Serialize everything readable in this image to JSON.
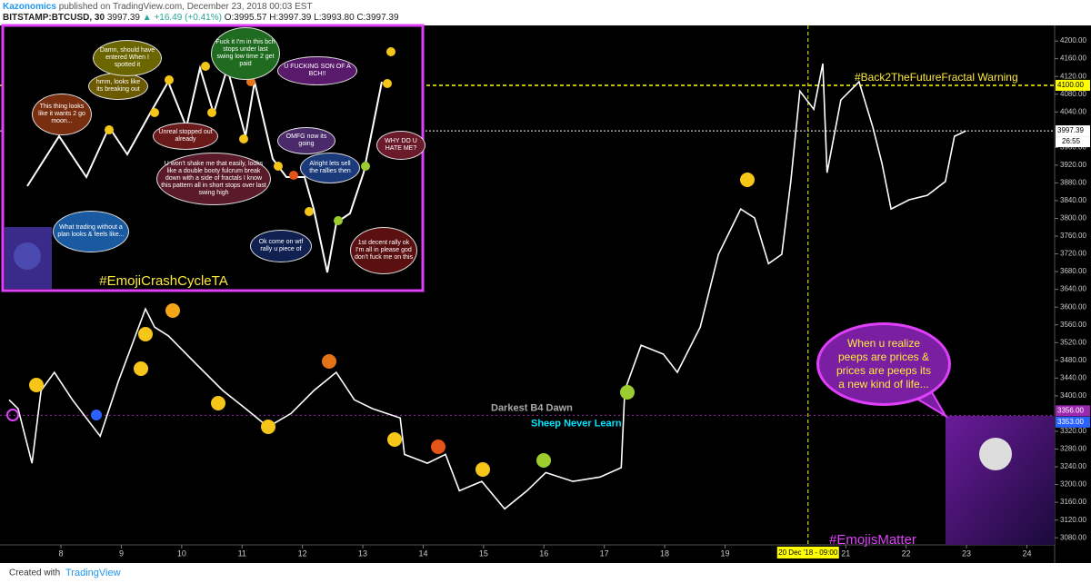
{
  "header": {
    "author": "Kazonomics",
    "published": "published on TradingView.com, December 23, 2018 00:03 EST",
    "symbol": "BITSTAMP:BTCUSD, 30",
    "last": "3997.39",
    "change": "▲ +16.49 (+0.41%)",
    "ohlc": "O:3995.57 H:3997.39 L:3993.80 C:3997.39"
  },
  "chart_data": {
    "type": "line",
    "color": "#ffffff",
    "x": [
      7.14,
      7.29,
      7.52,
      7.67,
      7.89,
      8.19,
      8.65,
      8.95,
      9.4,
      9.55,
      9.78,
      10.23,
      10.68,
      11.06,
      11.43,
      11.81,
      12.19,
      12.56,
      12.86,
      13.16,
      13.62,
      13.69,
      14.07,
      14.37,
      14.6,
      14.97,
      15.35,
      15.72,
      16.03,
      16.48,
      16.93,
      17.28,
      17.34,
      17.61,
      17.98,
      18.21,
      18.59,
      18.89,
      19.26,
      19.49,
      19.72,
      19.94,
      20.09,
      20.24,
      20.47,
      20.62,
      20.69,
      20.92,
      21.22,
      21.45,
      21.6,
      21.75,
      22.05,
      22.35,
      22.65,
      22.8,
      22.99
    ],
    "values": [
      3391,
      3371,
      3248,
      3412,
      3453,
      3391,
      3309,
      3432,
      3596,
      3555,
      3535,
      3473,
      3412,
      3371,
      3330,
      3360,
      3412,
      3453,
      3391,
      3371,
      3350,
      3268,
      3248,
      3268,
      3186,
      3207,
      3145,
      3186,
      3227,
      3207,
      3217,
      3238,
      3412,
      3514,
      3494,
      3453,
      3555,
      3719,
      3821,
      3801,
      3698,
      3719,
      3883,
      4087,
      4046,
      4149,
      3903,
      4067,
      4108,
      4005,
      3924,
      3821,
      3842,
      3852,
      3883,
      3985,
      3997.39
    ],
    "xlim": [
      6.99,
      24.46
    ],
    "xticks": [
      8,
      9,
      10,
      11,
      12,
      13,
      14,
      15,
      16,
      17,
      18,
      19,
      21,
      22,
      23,
      24
    ],
    "ylim": [
      3064,
      4235
    ],
    "yticks": [
      {
        "value": 3080,
        "label": "3080.00"
      },
      {
        "value": 3120,
        "label": "3120.00"
      },
      {
        "value": 3160,
        "label": "3160.00"
      },
      {
        "value": 3200,
        "label": "3200.00"
      },
      {
        "value": 3240,
        "label": "3240.00"
      },
      {
        "value": 3280,
        "label": "3280.00"
      },
      {
        "value": 3320,
        "label": "3320.00"
      },
      {
        "value": 3400,
        "label": "3400.00"
      },
      {
        "value": 3440,
        "label": "3440.00"
      },
      {
        "value": 3480,
        "label": "3480.00"
      },
      {
        "value": 3520,
        "label": "3520.00"
      },
      {
        "value": 3560,
        "label": "3560.00"
      },
      {
        "value": 3600,
        "label": "3600.00"
      },
      {
        "value": 3640,
        "label": "3640.00"
      },
      {
        "value": 3680,
        "label": "3680.00"
      },
      {
        "value": 3720,
        "label": "3720.00"
      },
      {
        "value": 3760,
        "label": "3760.00"
      },
      {
        "value": 3800,
        "label": "3800.00"
      },
      {
        "value": 3840,
        "label": "3840.00"
      },
      {
        "value": 3880,
        "label": "3880.00"
      },
      {
        "value": 3920,
        "label": "3920.00"
      },
      {
        "value": 3960,
        "label": "3960.00"
      },
      {
        "value": 4040,
        "label": "4040.00"
      },
      {
        "value": 4080,
        "label": "4080.00"
      },
      {
        "value": 4120,
        "label": "4120.00"
      },
      {
        "value": 4160,
        "label": "4160.00"
      },
      {
        "value": 4200,
        "label": "4200.00"
      }
    ],
    "price_labels": [
      {
        "value": 4100,
        "label": "4100.00",
        "color": "#ffff00"
      },
      {
        "value": 3997.39,
        "label": "3997.39",
        "color": "#ffffff"
      },
      {
        "value": 3356,
        "label": "3356.00",
        "color": "#9c27b0"
      },
      {
        "value": 3353,
        "label": "3353.00",
        "color": "#2962ff"
      }
    ],
    "countdown": "26:55",
    "vline": {
      "value": 20.375,
      "label": "20 Dec '18 - 09:00",
      "color": "#ffff00"
    },
    "annotations": [
      "#Back2TheFutureFractal Warning",
      "Darkest B4 Dawn",
      "Sheep Never Learn",
      "When u realize peeps are prices & prices are peeps its a new kind of life...",
      "#EmojisMatter"
    ]
  },
  "inset": {
    "title": "#EmojiCrashCycleTA",
    "bubbles": [
      "This thing looks like it wants 2 go moon...",
      "hmm, looks like its breaking out",
      "Damn, should have entered When I spotted it",
      "Fuck it I'm in this bch stops under last swing low time 2 get paid",
      "U FUCKING SON OF A BCH!!",
      "Unreal stopped out already",
      "U won't shake me that easily, looks like a double booty fulcrum break down with a side of fractals I know this pattern all in short stops over last swing high",
      "OMFG now its going",
      "Alright lets sell the rallies then",
      "WHY DO U HATE ME?",
      "Ok come on wtf rally u piece of",
      "1st decent rally ok I'm all in please god don't fuck me on this",
      "What trading without a plan looks & feels like..."
    ]
  },
  "footer": {
    "created": "Created with",
    "brand": "TradingView"
  }
}
